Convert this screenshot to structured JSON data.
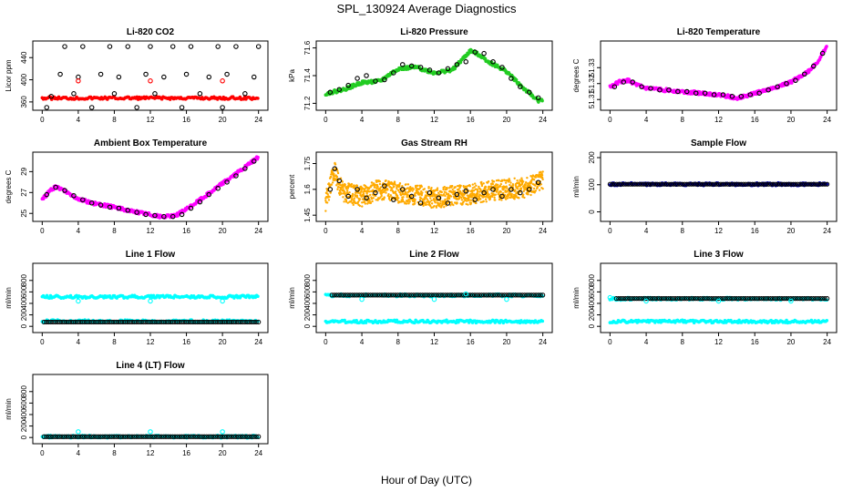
{
  "figure": {
    "title": "SPL_130924  Average Diagnostics",
    "xlabel": "Hour of Day (UTC)"
  },
  "chart_data": [
    {
      "type": "scatter",
      "title": "Li-820 CO2",
      "ylabel": "Licor ppm",
      "xlim": [
        0,
        24
      ],
      "xticks": [
        0,
        4,
        8,
        12,
        16,
        20,
        24
      ],
      "ylim": [
        350,
        465
      ],
      "yticks": [
        360,
        400,
        440
      ],
      "series": [
        {
          "name": "co2-dense",
          "color": "#ff0000",
          "marker": "dot",
          "kind": "range",
          "x0": 0,
          "x1": 24,
          "y": 367
        },
        {
          "name": "co2-avg",
          "color": "#000000",
          "marker": "ring",
          "x": [
            0.5,
            1,
            2,
            2.5,
            3.5,
            4,
            4.5,
            5.5,
            6.5,
            7.5,
            8,
            8.5,
            9.5,
            10.5,
            11.5,
            12,
            12.5,
            13.5,
            14.5,
            15.5,
            16,
            16.5,
            17.5,
            18.5,
            19.5,
            20,
            20.5,
            21.5,
            22.5,
            23.5,
            24
          ],
          "y": [
            350,
            370,
            410,
            460,
            375,
            405,
            460,
            350,
            410,
            460,
            375,
            405,
            460,
            350,
            410,
            460,
            375,
            405,
            460,
            350,
            410,
            460,
            375,
            405,
            460,
            350,
            410,
            460,
            375,
            405,
            460
          ]
        },
        {
          "name": "co2-cal",
          "color": "#ff0000",
          "marker": "ring",
          "x": [
            4,
            12,
            20
          ],
          "y": [
            398,
            398,
            398
          ]
        }
      ]
    },
    {
      "type": "scatter",
      "title": "Li-820 Pressure",
      "ylabel": "kPa",
      "xlim": [
        0,
        24
      ],
      "xticks": [
        0,
        4,
        8,
        12,
        16,
        20,
        24
      ],
      "ylim": [
        71.17,
        71.63
      ],
      "yticks": [
        71.2,
        71.4,
        71.6
      ],
      "series": [
        {
          "name": "pressure-dense",
          "color": "#22cc22",
          "marker": "dot",
          "x": [
            0,
            2,
            4,
            6,
            8,
            10,
            12,
            14,
            16,
            17,
            18,
            20,
            22,
            23.5
          ],
          "y": [
            71.27,
            71.3,
            71.35,
            71.36,
            71.45,
            71.46,
            71.42,
            71.44,
            71.58,
            71.55,
            71.5,
            71.43,
            71.3,
            71.22
          ]
        },
        {
          "name": "pressure-avg",
          "color": "#000000",
          "marker": "ring",
          "x": [
            0.5,
            1.5,
            2.5,
            3.5,
            4.5,
            5.5,
            6.5,
            7.5,
            8.5,
            9.5,
            10.5,
            11.5,
            12.5,
            13.5,
            14.5,
            15.5,
            16.5,
            17.5,
            18.5,
            19.5,
            20.5,
            21.5,
            22.5,
            23.5
          ],
          "y": [
            71.28,
            71.3,
            71.33,
            71.38,
            71.4,
            71.36,
            71.37,
            71.42,
            71.48,
            71.47,
            71.46,
            71.44,
            71.42,
            71.45,
            71.48,
            71.5,
            71.57,
            71.56,
            71.5,
            71.46,
            71.38,
            71.32,
            71.28,
            71.24
          ]
        }
      ]
    },
    {
      "type": "scatter",
      "title": "Li-820 Temperature",
      "ylabel": "degrees C",
      "xlim": [
        0,
        24
      ],
      "xticks": [
        0,
        4,
        8,
        12,
        16,
        20,
        24
      ],
      "ylim": [
        51.305,
        51.345
      ],
      "yticks": [
        51.31,
        51.32,
        51.33
      ],
      "series": [
        {
          "name": "temp-dense",
          "color": "#ff00ff",
          "marker": "dot",
          "x": [
            0,
            1,
            2,
            3,
            4,
            6,
            8,
            10,
            12,
            13,
            14,
            15,
            16,
            18,
            20,
            22,
            23,
            24
          ],
          "y": [
            51.318,
            51.321,
            51.322,
            51.319,
            51.317,
            51.316,
            51.315,
            51.314,
            51.313,
            51.312,
            51.311,
            51.312,
            51.314,
            51.317,
            51.321,
            51.328,
            51.334,
            51.344
          ]
        },
        {
          "name": "temp-avg",
          "color": "#000000",
          "marker": "ring",
          "x": [
            0.5,
            1.5,
            2.5,
            3.5,
            4.5,
            5.5,
            6.5,
            7.5,
            8.5,
            9.5,
            10.5,
            11.5,
            12.5,
            13.5,
            14.5,
            15.5,
            16.5,
            17.5,
            18.5,
            19.5,
            20.5,
            21.5,
            22.5,
            23.5
          ],
          "y": [
            51.318,
            51.321,
            51.321,
            51.318,
            51.317,
            51.316,
            51.316,
            51.315,
            51.315,
            51.314,
            51.314,
            51.313,
            51.313,
            51.312,
            51.312,
            51.313,
            51.314,
            51.316,
            51.318,
            51.32,
            51.322,
            51.326,
            51.331,
            51.339
          ]
        }
      ]
    },
    {
      "type": "scatter",
      "title": "Ambient Box Temperature",
      "ylabel": "degrees C",
      "xlim": [
        0,
        24
      ],
      "xticks": [
        0,
        4,
        8,
        12,
        16,
        20,
        24
      ],
      "ylim": [
        24.5,
        30.6
      ],
      "yticks": [
        25,
        27,
        29
      ],
      "series": [
        {
          "name": "ambient-dense",
          "color": "#ff00ff",
          "marker": "dot",
          "x": [
            0,
            0.5,
            1,
            1.5,
            2,
            3,
            4,
            6,
            8,
            10,
            12,
            13,
            14,
            15,
            16,
            18,
            20,
            22,
            24
          ],
          "y": [
            26.4,
            26.8,
            27.3,
            27.5,
            27.4,
            26.9,
            26.4,
            25.9,
            25.6,
            25.2,
            24.9,
            24.7,
            24.7,
            24.9,
            25.4,
            26.6,
            27.9,
            29.1,
            30.4
          ]
        },
        {
          "name": "ambient-avg",
          "color": "#000000",
          "marker": "ring",
          "x": [
            0.5,
            1.5,
            2.5,
            3.5,
            4.5,
            5.5,
            6.5,
            7.5,
            8.5,
            9.5,
            10.5,
            11.5,
            12.5,
            13.5,
            14.5,
            15.5,
            16.5,
            17.5,
            18.5,
            19.5,
            20.5,
            21.5,
            22.5,
            23.5
          ],
          "y": [
            26.8,
            27.5,
            27.2,
            26.7,
            26.3,
            26.0,
            25.8,
            25.6,
            25.5,
            25.3,
            25.1,
            24.9,
            24.8,
            24.7,
            24.7,
            24.9,
            25.5,
            26.1,
            26.8,
            27.4,
            28.0,
            28.6,
            29.3,
            30.0
          ]
        }
      ]
    },
    {
      "type": "scatter",
      "title": "Gas Stream RH",
      "ylabel": "percent",
      "xlim": [
        0,
        24
      ],
      "xticks": [
        0,
        4,
        8,
        12,
        16,
        20,
        24
      ],
      "ylim": [
        1.43,
        1.8
      ],
      "yticks": [
        1.45,
        1.6,
        1.75
      ],
      "series": [
        {
          "name": "rh-dense",
          "color": "#ffaa00",
          "marker": "dot",
          "kind": "band",
          "x": [
            0,
            1,
            1.5,
            2,
            4,
            6,
            8,
            10,
            12,
            14,
            16,
            18,
            20,
            22,
            24
          ],
          "y": [
            1.52,
            1.72,
            1.62,
            1.58,
            1.56,
            1.6,
            1.58,
            1.57,
            1.55,
            1.56,
            1.57,
            1.59,
            1.6,
            1.61,
            1.65
          ],
          "spread": 0.06
        },
        {
          "name": "rh-avg",
          "color": "#000000",
          "marker": "ring",
          "x": [
            0.5,
            1,
            1.5,
            2.5,
            3.5,
            4.5,
            5.5,
            6.5,
            7.5,
            8.5,
            9.5,
            10.5,
            11.5,
            12.5,
            13.5,
            14.5,
            15.5,
            16.5,
            17.5,
            18.5,
            19.5,
            20.5,
            21.5,
            22.5,
            23.5
          ],
          "y": [
            1.6,
            1.72,
            1.65,
            1.56,
            1.6,
            1.55,
            1.58,
            1.62,
            1.54,
            1.6,
            1.56,
            1.52,
            1.58,
            1.55,
            1.52,
            1.57,
            1.59,
            1.54,
            1.58,
            1.6,
            1.56,
            1.6,
            1.58,
            1.6,
            1.64
          ]
        }
      ]
    },
    {
      "type": "scatter",
      "title": "Sample Flow",
      "ylabel": "ml/min",
      "xlim": [
        0,
        24
      ],
      "xticks": [
        0,
        4,
        8,
        12,
        16,
        20,
        24
      ],
      "ylim": [
        -25,
        210
      ],
      "yticks": [
        0,
        100,
        200
      ],
      "series": [
        {
          "name": "sample-dense",
          "color": "#0000cc",
          "marker": "dot",
          "kind": "range",
          "x0": 0,
          "x1": 24,
          "y": 102
        },
        {
          "name": "sample-avg",
          "color": "#000000",
          "marker": "ring",
          "kind": "line",
          "x0": 0,
          "x1": 24,
          "y": 102
        }
      ]
    },
    {
      "type": "scatter",
      "title": "Line 1 Flow",
      "ylabel": "ml/min",
      "xlim": [
        0,
        24
      ],
      "xticks": [
        0,
        4,
        8,
        12,
        16,
        20,
        24
      ],
      "ylim": [
        -60,
        1050
      ],
      "yticks": [
        0,
        200,
        400,
        600,
        800
      ],
      "series": [
        {
          "name": "line1-high",
          "color": "#00ffff",
          "marker": "dot",
          "kind": "range",
          "x0": 0,
          "x1": 24,
          "y": 515
        },
        {
          "name": "line1-low",
          "color": "#00ffff",
          "marker": "dot",
          "kind": "range",
          "x0": 0,
          "x1": 24,
          "y": 90
        },
        {
          "name": "line1-avg",
          "color": "#000000",
          "marker": "ring",
          "kind": "line",
          "x0": 0.2,
          "x1": 24,
          "y": 75
        },
        {
          "name": "line1-cal",
          "color": "#00ffff",
          "marker": "ring",
          "x": [
            4,
            12,
            20
          ],
          "y": [
            440,
            440,
            440
          ]
        }
      ]
    },
    {
      "type": "scatter",
      "title": "Line 2 Flow",
      "ylabel": "ml/min",
      "xlim": [
        0,
        24
      ],
      "xticks": [
        0,
        4,
        8,
        12,
        16,
        20,
        24
      ],
      "ylim": [
        -60,
        1050
      ],
      "yticks": [
        0,
        200,
        400,
        600,
        800
      ],
      "series": [
        {
          "name": "line2-high",
          "color": "#00ffff",
          "marker": "dot",
          "kind": "range",
          "x0": 0,
          "x1": 24,
          "y": 540
        },
        {
          "name": "line2-low",
          "color": "#00ffff",
          "marker": "dot",
          "kind": "range",
          "x0": 0,
          "x1": 24,
          "y": 85
        },
        {
          "name": "line2-avg",
          "color": "#000000",
          "marker": "ring",
          "kind": "line",
          "x0": 0.7,
          "x1": 24,
          "y": 545
        },
        {
          "name": "line2-cal",
          "color": "#00ffff",
          "marker": "ring",
          "x": [
            4,
            12,
            15.5,
            20
          ],
          "y": [
            470,
            470,
            565,
            470
          ]
        }
      ]
    },
    {
      "type": "scatter",
      "title": "Line 3 Flow",
      "ylabel": "ml/min",
      "xlim": [
        0,
        24
      ],
      "xticks": [
        0,
        4,
        8,
        12,
        16,
        20,
        24
      ],
      "ylim": [
        -60,
        1050
      ],
      "yticks": [
        0,
        200,
        400,
        600,
        800
      ],
      "series": [
        {
          "name": "line3-high",
          "color": "#00ffff",
          "marker": "dot",
          "kind": "range",
          "x0": 0,
          "x1": 24,
          "y": 480
        },
        {
          "name": "line3-low",
          "color": "#00ffff",
          "marker": "dot",
          "kind": "range",
          "x0": 0,
          "x1": 24,
          "y": 85
        },
        {
          "name": "line3-avg",
          "color": "#000000",
          "marker": "ring",
          "kind": "line",
          "x0": 0.7,
          "x1": 24,
          "y": 485
        },
        {
          "name": "line3-cal",
          "color": "#00ffff",
          "marker": "ring",
          "x": [
            0,
            4,
            12,
            20
          ],
          "y": [
            500,
            440,
            440,
            440
          ]
        }
      ]
    },
    {
      "type": "scatter",
      "title": "Line 4 (LT) Flow",
      "ylabel": "ml/min",
      "xlim": [
        0,
        24
      ],
      "xticks": [
        0,
        4,
        8,
        12,
        16,
        20,
        24
      ],
      "ylim": [
        -60,
        1050
      ],
      "yticks": [
        0,
        200,
        400,
        600,
        800
      ],
      "series": [
        {
          "name": "line4-dense",
          "color": "#00ffff",
          "marker": "dot",
          "kind": "range",
          "x0": 0,
          "x1": 24,
          "y": 15
        },
        {
          "name": "line4-avg",
          "color": "#000000",
          "marker": "ring",
          "kind": "line",
          "x0": 0.2,
          "x1": 24,
          "y": 15
        },
        {
          "name": "line4-cal",
          "color": "#00ffff",
          "marker": "ring",
          "x": [
            4,
            12,
            20
          ],
          "y": [
            100,
            100,
            100
          ]
        }
      ]
    }
  ]
}
